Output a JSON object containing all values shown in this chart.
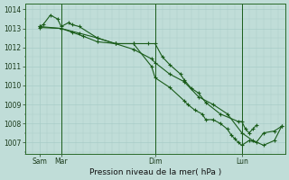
{
  "background_color": "#c0ddd8",
  "grid_color": "#a8ccc8",
  "line_color": "#1a5c1a",
  "xlabel": "Pression niveau de la mer( hPa )",
  "ylim": [
    1006.4,
    1014.3
  ],
  "yticks": [
    1007,
    1008,
    1009,
    1010,
    1011,
    1012,
    1013,
    1014
  ],
  "xlim": [
    0,
    144
  ],
  "xtick_positions": [
    8,
    20,
    72,
    120
  ],
  "xtick_labels": [
    "Sam",
    "Mar",
    "Dim",
    "Lun"
  ],
  "vline_positions": [
    20,
    72,
    120
  ],
  "series1_x": [
    8,
    10,
    14,
    18,
    20,
    24,
    26,
    30,
    40,
    50,
    60,
    68,
    72,
    76,
    80,
    86,
    88,
    92,
    96,
    100,
    108,
    118,
    120,
    122,
    124,
    126,
    128
  ],
  "series1_y": [
    1013.1,
    1013.2,
    1013.7,
    1013.5,
    1013.1,
    1013.3,
    1013.2,
    1013.1,
    1012.5,
    1012.2,
    1012.2,
    1012.2,
    1012.2,
    1011.5,
    1011.1,
    1010.6,
    1010.3,
    1009.85,
    1009.6,
    1009.1,
    1008.5,
    1008.1,
    1008.1,
    1007.7,
    1007.5,
    1007.7,
    1007.9
  ],
  "series2_x": [
    8,
    20,
    26,
    32,
    40,
    50,
    60,
    70,
    72,
    80,
    88,
    96,
    104,
    112,
    120,
    126,
    132,
    138,
    142
  ],
  "series2_y": [
    1013.1,
    1013.0,
    1012.8,
    1012.6,
    1012.3,
    1012.2,
    1011.9,
    1011.4,
    1011.2,
    1010.6,
    1010.2,
    1009.4,
    1009.0,
    1008.5,
    1007.5,
    1007.1,
    1006.85,
    1007.1,
    1007.85
  ],
  "series3_x": [
    8,
    20,
    30,
    40,
    50,
    60,
    70,
    72,
    80,
    88,
    90,
    94,
    98,
    100,
    104,
    108,
    112,
    114,
    116,
    118,
    120,
    124,
    128,
    132,
    138,
    142
  ],
  "series3_y": [
    1013.05,
    1013.0,
    1012.75,
    1012.5,
    1012.2,
    1012.2,
    1011.0,
    1010.4,
    1009.9,
    1009.2,
    1009.0,
    1008.7,
    1008.5,
    1008.2,
    1008.2,
    1008.0,
    1007.7,
    1007.4,
    1007.2,
    1007.0,
    1006.85,
    1007.1,
    1007.0,
    1007.5,
    1007.6,
    1007.85
  ]
}
